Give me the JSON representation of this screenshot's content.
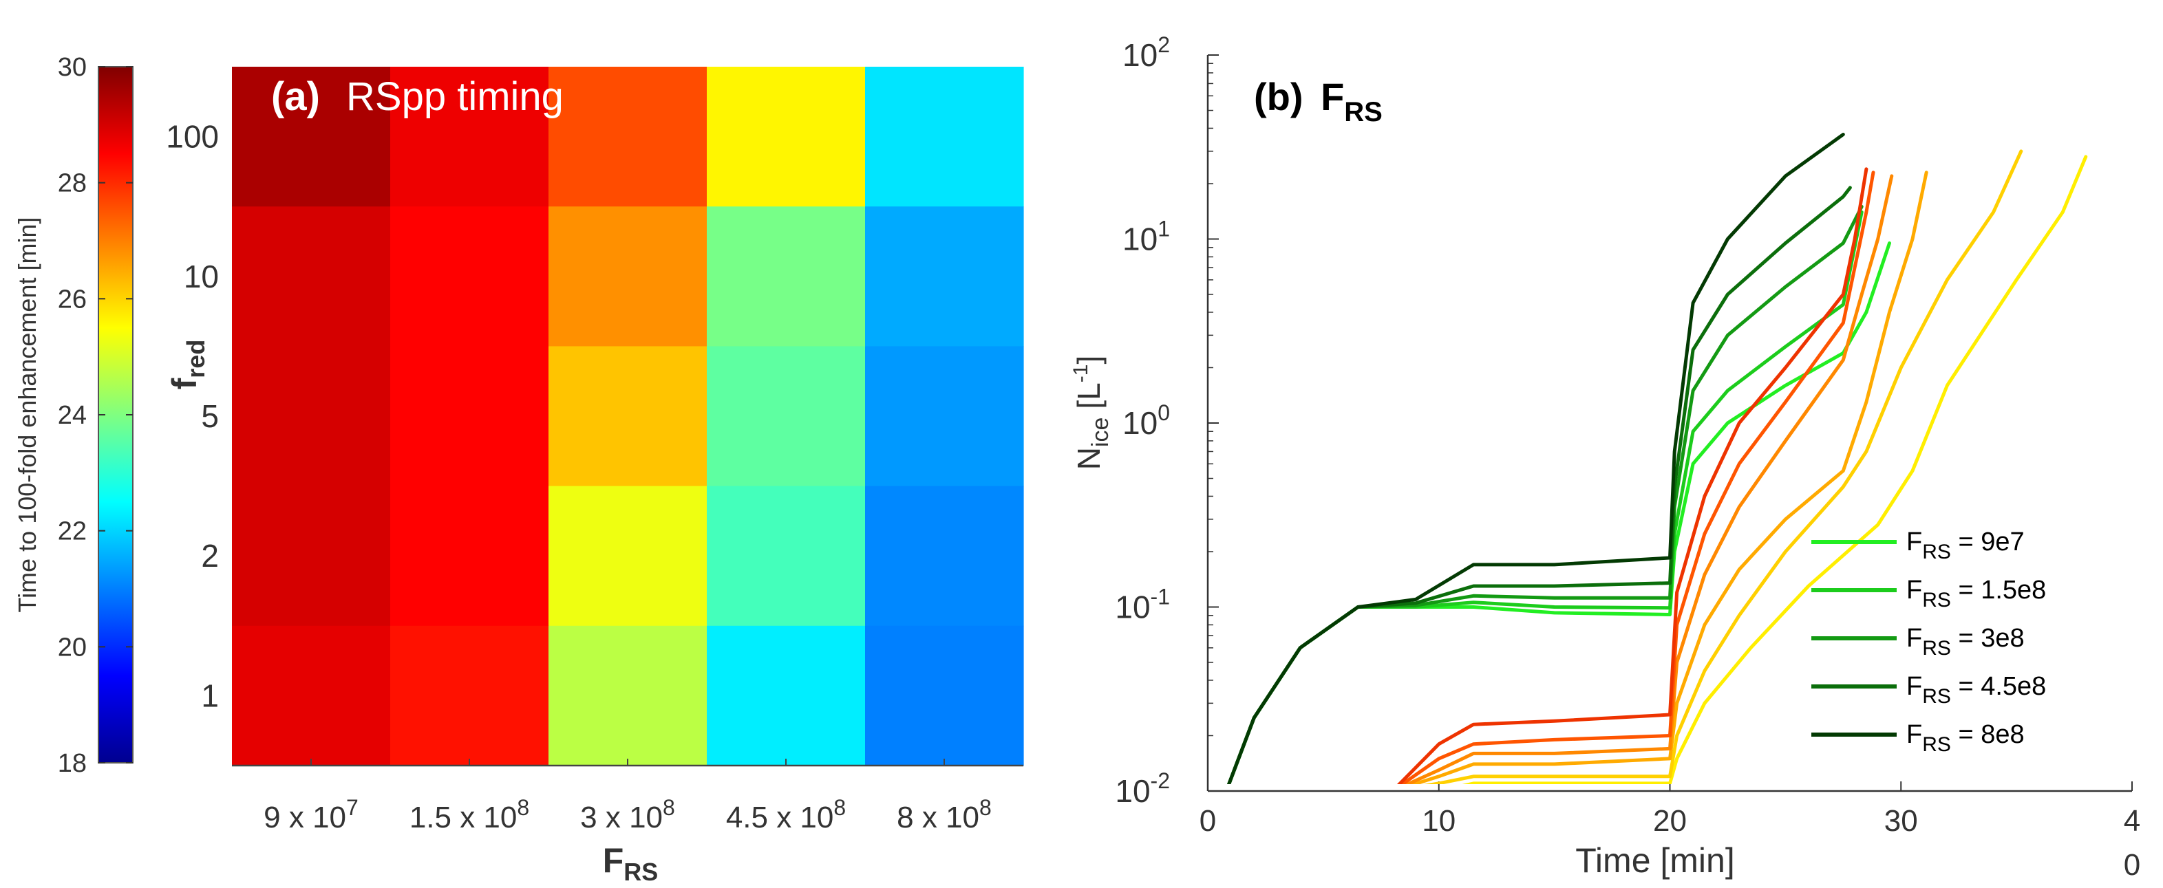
{
  "chart_data": [
    {
      "type": "heatmap",
      "panel_label": "(a)",
      "title": "RSpp  timing",
      "xlabel": {
        "base": "F",
        "sub": "RS"
      },
      "ylabel": {
        "base": "f",
        "sub": "red"
      },
      "x_ticks": [
        {
          "base": "9 x 10",
          "exp": "7"
        },
        {
          "base": "1.5 x 10",
          "exp": "8"
        },
        {
          "base": "3 x 10",
          "exp": "8"
        },
        {
          "base": "4.5 x 10",
          "exp": "8"
        },
        {
          "base": "8 x 10",
          "exp": "8"
        }
      ],
      "y_ticks": [
        "100",
        "10",
        "5",
        "2",
        "1"
      ],
      "values": [
        [
          29.5,
          28.7,
          27.6,
          25.6,
          22.2
        ],
        [
          29.0,
          28.5,
          26.8,
          23.9,
          21.5
        ],
        [
          29.0,
          28.5,
          26.2,
          23.6,
          21.3
        ],
        [
          29.0,
          28.5,
          25.3,
          23.3,
          21.1
        ],
        [
          28.8,
          28.3,
          24.7,
          22.3,
          21.0
        ]
      ],
      "colorbar": {
        "label": "Time to 100-fold enhancement [min]",
        "range": [
          18,
          30
        ],
        "ticks": [
          "18",
          "20",
          "22",
          "24",
          "26",
          "28",
          "30"
        ]
      }
    },
    {
      "type": "line",
      "panel_label": "(b)",
      "title": {
        "base": "F",
        "sub": "RS"
      },
      "xlabel": "Time [min]",
      "ylabel": {
        "base": "N",
        "sub": "ice",
        "unit": "[L",
        "unit_exp": "-1",
        "unit_end": "]"
      },
      "y_scale": "log",
      "xlim": [
        0,
        40
      ],
      "ylim": [
        0.01,
        100
      ],
      "x_ticks": [
        "0",
        "10",
        "20",
        "30",
        "4",
        "0"
      ],
      "y_ticks": [
        {
          "base": "10",
          "exp": "-2"
        },
        {
          "base": "10",
          "exp": "-1"
        },
        {
          "base": "10",
          "exp": "0"
        },
        {
          "base": "10",
          "exp": "1"
        },
        {
          "base": "10",
          "exp": "2"
        }
      ],
      "legend_placement": "bottom-right",
      "legend": [
        {
          "base": "F",
          "sub": "RS",
          "text": " = 9e7",
          "color": "#22ee22"
        },
        {
          "base": "F",
          "sub": "RS",
          "text": " = 1.5e8",
          "color": "#1ccc1c"
        },
        {
          "base": "F",
          "sub": "RS",
          "text": " = 3e8",
          "color": "#139a13"
        },
        {
          "base": "F",
          "sub": "RS",
          "text": " = 4.5e8",
          "color": "#0b6e0b"
        },
        {
          "base": "F",
          "sub": "RS",
          "text": " = 8e8",
          "color": "#033a03"
        }
      ],
      "series": [
        {
          "color": "#22ee22",
          "points": [
            [
              0.8,
              0.01
            ],
            [
              2,
              0.025
            ],
            [
              4,
              0.06
            ],
            [
              6.5,
              0.1
            ],
            [
              9,
              0.1
            ],
            [
              11.5,
              0.1
            ],
            [
              15,
              0.093
            ],
            [
              20,
              0.091
            ],
            [
              20.2,
              0.2
            ],
            [
              21,
              0.6
            ],
            [
              22.5,
              1.0
            ],
            [
              25,
              1.6
            ],
            [
              27.5,
              2.4
            ],
            [
              28.5,
              4
            ],
            [
              29.5,
              9.5
            ]
          ]
        },
        {
          "color": "#1ccc1c",
          "points": [
            [
              0.8,
              0.01
            ],
            [
              2,
              0.025
            ],
            [
              4,
              0.06
            ],
            [
              6.5,
              0.1
            ],
            [
              9,
              0.1
            ],
            [
              11.5,
              0.106
            ],
            [
              15,
              0.1
            ],
            [
              20,
              0.099
            ],
            [
              20.2,
              0.25
            ],
            [
              21,
              0.9
            ],
            [
              22.5,
              1.5
            ],
            [
              25,
              2.6
            ],
            [
              27.5,
              4.4
            ],
            [
              28.3,
              14
            ]
          ]
        },
        {
          "color": "#139a13",
          "points": [
            [
              0.8,
              0.01
            ],
            [
              2,
              0.025
            ],
            [
              4,
              0.06
            ],
            [
              6.5,
              0.1
            ],
            [
              9,
              0.102
            ],
            [
              11.5,
              0.115
            ],
            [
              15,
              0.112
            ],
            [
              20,
              0.112
            ],
            [
              20.2,
              0.35
            ],
            [
              21,
              1.5
            ],
            [
              22.5,
              3
            ],
            [
              25,
              5.5
            ],
            [
              27.5,
              9.5
            ],
            [
              28.3,
              15
            ]
          ]
        },
        {
          "color": "#0b6e0b",
          "points": [
            [
              0.8,
              0.01
            ],
            [
              2,
              0.025
            ],
            [
              4,
              0.06
            ],
            [
              6.5,
              0.1
            ],
            [
              9,
              0.105
            ],
            [
              11.5,
              0.13
            ],
            [
              15,
              0.13
            ],
            [
              20,
              0.135
            ],
            [
              20.2,
              0.45
            ],
            [
              21,
              2.5
            ],
            [
              22.5,
              5
            ],
            [
              25,
              9.5
            ],
            [
              27.5,
              17
            ],
            [
              27.8,
              19
            ]
          ]
        },
        {
          "color": "#033a03",
          "points": [
            [
              0.8,
              0.01
            ],
            [
              2,
              0.025
            ],
            [
              4,
              0.06
            ],
            [
              6.5,
              0.1
            ],
            [
              9,
              0.11
            ],
            [
              11.5,
              0.17
            ],
            [
              15,
              0.17
            ],
            [
              20,
              0.185
            ],
            [
              20.2,
              0.7
            ],
            [
              21,
              4.5
            ],
            [
              22.5,
              10
            ],
            [
              25,
              22
            ],
            [
              27.5,
              37
            ]
          ]
        },
        {
          "color": "#ffee00",
          "points": [
            [
              0,
              0.01
            ],
            [
              8,
              0.01
            ],
            [
              10,
              0.01
            ],
            [
              11.5,
              0.011
            ],
            [
              15,
              0.011
            ],
            [
              20,
              0.011
            ],
            [
              20.3,
              0.015
            ],
            [
              21.5,
              0.03
            ],
            [
              23.5,
              0.06
            ],
            [
              26,
              0.13
            ],
            [
              29,
              0.28
            ],
            [
              30.5,
              0.55
            ],
            [
              32,
              1.6
            ],
            [
              35,
              6
            ],
            [
              37,
              14
            ],
            [
              38,
              28
            ]
          ]
        },
        {
          "color": "#ffd000",
          "points": [
            [
              0,
              0.01
            ],
            [
              8,
              0.01
            ],
            [
              10,
              0.011
            ],
            [
              11.5,
              0.012
            ],
            [
              15,
              0.012
            ],
            [
              20,
              0.012
            ],
            [
              20.3,
              0.02
            ],
            [
              21.5,
              0.045
            ],
            [
              23,
              0.09
            ],
            [
              25,
              0.2
            ],
            [
              27.5,
              0.45
            ],
            [
              28.5,
              0.7
            ],
            [
              30,
              2
            ],
            [
              32,
              6
            ],
            [
              34,
              14
            ],
            [
              35.2,
              30
            ]
          ]
        },
        {
          "color": "#ffaa00",
          "points": [
            [
              0,
              0.01
            ],
            [
              8,
              0.01
            ],
            [
              10,
              0.012
            ],
            [
              11.5,
              0.014
            ],
            [
              15,
              0.014
            ],
            [
              20,
              0.015
            ],
            [
              20.3,
              0.03
            ],
            [
              21.5,
              0.08
            ],
            [
              23,
              0.16
            ],
            [
              25,
              0.3
            ],
            [
              27.5,
              0.55
            ],
            [
              28.5,
              1.3
            ],
            [
              29.5,
              4
            ],
            [
              30.5,
              10
            ],
            [
              31.1,
              23
            ]
          ]
        },
        {
          "color": "#ff8800",
          "points": [
            [
              0,
              0.01
            ],
            [
              8,
              0.01
            ],
            [
              10,
              0.013
            ],
            [
              11.5,
              0.016
            ],
            [
              15,
              0.016
            ],
            [
              20,
              0.017
            ],
            [
              20.3,
              0.05
            ],
            [
              21.5,
              0.15
            ],
            [
              23,
              0.35
            ],
            [
              25,
              0.8
            ],
            [
              27.5,
              2.2
            ],
            [
              28.3,
              5
            ],
            [
              29,
              10
            ],
            [
              29.6,
              22
            ]
          ]
        },
        {
          "color": "#ff5500",
          "points": [
            [
              0,
              0.01
            ],
            [
              8,
              0.01
            ],
            [
              10,
              0.015
            ],
            [
              11.5,
              0.018
            ],
            [
              15,
              0.019
            ],
            [
              20,
              0.02
            ],
            [
              20.3,
              0.08
            ],
            [
              21.5,
              0.25
            ],
            [
              23,
              0.6
            ],
            [
              25,
              1.3
            ],
            [
              27.5,
              3.5
            ],
            [
              28,
              7
            ],
            [
              28.5,
              14
            ],
            [
              28.8,
              23
            ]
          ]
        },
        {
          "color": "#ee3300",
          "points": [
            [
              0,
              0.01
            ],
            [
              8,
              0.01
            ],
            [
              10,
              0.018
            ],
            [
              11.5,
              0.023
            ],
            [
              15,
              0.024
            ],
            [
              20,
              0.026
            ],
            [
              20.3,
              0.12
            ],
            [
              21.5,
              0.4
            ],
            [
              23,
              1.0
            ],
            [
              25,
              2.0
            ],
            [
              27.5,
              5
            ],
            [
              28,
              10
            ],
            [
              28.5,
              24
            ]
          ]
        }
      ]
    }
  ]
}
